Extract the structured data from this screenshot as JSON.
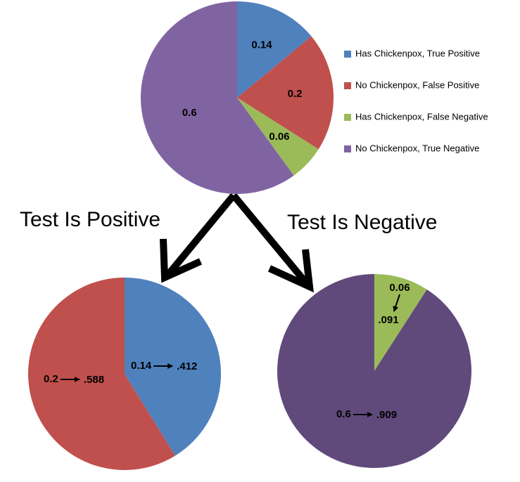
{
  "chart_data": [
    {
      "type": "pie",
      "categories": [
        "Has Chickenpox, True Positive",
        "No Chickenpox, False Positive",
        "Has Chickenpox, False Negative",
        "No Chickenpox, True Negative"
      ],
      "values": [
        0.14,
        0.2,
        0.06,
        0.6
      ],
      "colors": [
        "#4f81bd",
        "#c0504d",
        "#9bbb59",
        "#8064a2"
      ],
      "legend": "right"
    },
    {
      "type": "pie",
      "annotation": "Test Is Positive",
      "prior_values": [
        0.14,
        0.2
      ],
      "values": [
        0.412,
        0.588
      ],
      "value_labels": [
        ".412",
        ".588"
      ],
      "colors": [
        "#4f81bd",
        "#c0504d"
      ]
    },
    {
      "type": "pie",
      "annotation": "Test Is Negative",
      "prior_values": [
        0.06,
        0.6
      ],
      "values": [
        0.091,
        0.909
      ],
      "value_labels": [
        ".091",
        ".909"
      ],
      "colors": [
        "#9bbb59",
        "#604a7b"
      ]
    }
  ]
}
